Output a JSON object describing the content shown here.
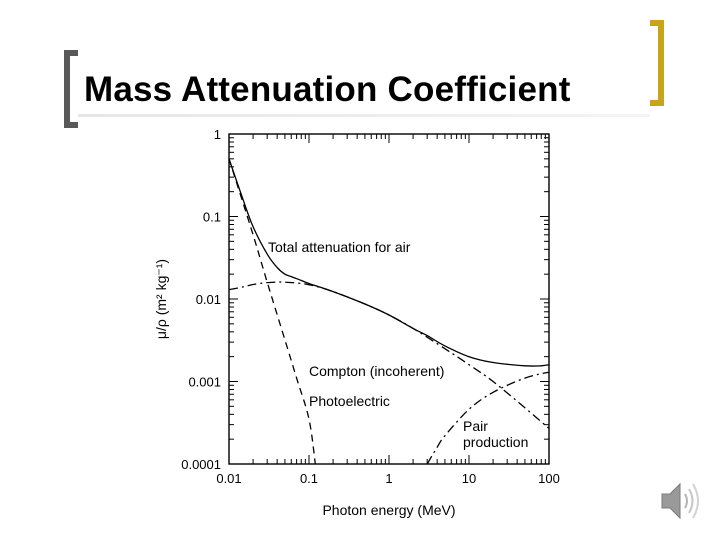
{
  "slide": {
    "title": "Mass Attenuation Coefficient"
  },
  "colors": {
    "left_bracket": "#595959",
    "right_bracket": "#c8a41a",
    "curve": "#000000"
  },
  "icons": {
    "audio": "speaker-icon"
  },
  "chart_data": {
    "type": "line",
    "xlabel": "Photon energy (MeV)",
    "ylabel": "μ/ρ (m² kg⁻¹)",
    "xscale": "log",
    "yscale": "log",
    "xlim": [
      0.01,
      100
    ],
    "ylim": [
      0.0001,
      1
    ],
    "xticks": [
      "0.01",
      "0.1",
      "1",
      "10",
      "100"
    ],
    "yticks": [
      "0.0001",
      "0.001",
      "0.01",
      "0.1",
      "1"
    ],
    "grid": false,
    "legend": "none",
    "series": [
      {
        "name": "Total attenuation for air",
        "style": "solid",
        "points": [
          [
            0.01,
            0.5
          ],
          [
            0.015,
            0.16
          ],
          [
            0.02,
            0.075
          ],
          [
            0.03,
            0.035
          ],
          [
            0.04,
            0.024
          ],
          [
            0.05,
            0.02
          ],
          [
            0.06,
            0.0187
          ],
          [
            0.08,
            0.0168
          ],
          [
            0.1,
            0.0154
          ],
          [
            0.2,
            0.0123
          ],
          [
            0.5,
            0.0087
          ],
          [
            1,
            0.0064
          ],
          [
            2,
            0.0044
          ],
          [
            3,
            0.0036
          ],
          [
            5,
            0.0027
          ],
          [
            10,
            0.002
          ],
          [
            20,
            0.0017
          ],
          [
            50,
            0.00155
          ],
          [
            80,
            0.00155
          ],
          [
            100,
            0.0016
          ]
        ]
      },
      {
        "name": "Compton (incoherent)",
        "style": "dash-dot",
        "points": [
          [
            0.01,
            0.013
          ],
          [
            0.015,
            0.014
          ],
          [
            0.02,
            0.015
          ],
          [
            0.03,
            0.0158
          ],
          [
            0.05,
            0.016
          ],
          [
            0.1,
            0.0149
          ],
          [
            0.2,
            0.0123
          ],
          [
            0.5,
            0.0087
          ],
          [
            1,
            0.0064
          ],
          [
            2,
            0.0044
          ],
          [
            5,
            0.0025
          ],
          [
            10,
            0.0016
          ],
          [
            20,
            0.001
          ],
          [
            50,
            0.00048
          ],
          [
            100,
            0.00027
          ]
        ]
      },
      {
        "name": "Photoelectric",
        "style": "dashed",
        "points": [
          [
            0.01,
            0.5
          ],
          [
            0.02,
            0.06
          ],
          [
            0.03,
            0.016
          ],
          [
            0.05,
            0.0032
          ],
          [
            0.07,
            0.0011
          ],
          [
            0.1,
            0.00035
          ],
          [
            0.12,
            0.0001
          ]
        ]
      },
      {
        "name": "Pair production",
        "style": "dash-dot",
        "points": [
          [
            3,
            0.0001
          ],
          [
            4,
            0.00016
          ],
          [
            5,
            0.00022
          ],
          [
            10,
            0.00046
          ],
          [
            20,
            0.00074
          ],
          [
            50,
            0.0011
          ],
          [
            100,
            0.0013
          ]
        ]
      }
    ],
    "annotations": [
      {
        "text": "Total attenuation for air"
      },
      {
        "text": "Compton (incoherent)"
      },
      {
        "text": "Photoelectric"
      },
      {
        "text": "Pair"
      },
      {
        "text": "production"
      }
    ]
  }
}
